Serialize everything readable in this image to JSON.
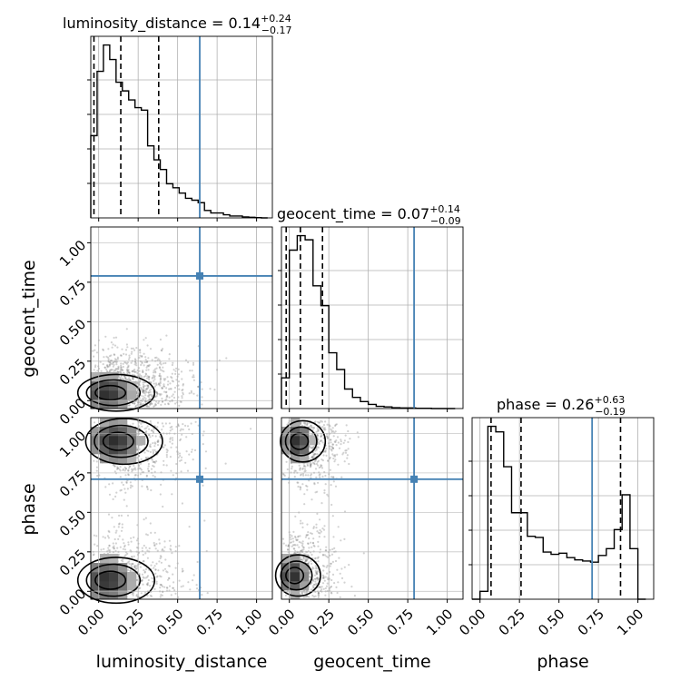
{
  "chart_data": {
    "type": "corner",
    "parameters": [
      "luminosity_distance",
      "geocent_time",
      "phase"
    ],
    "axis_labels": [
      "luminosity_distance",
      "geocent_time",
      "phase"
    ],
    "tick_labels": [
      "0.00",
      "0.25",
      "0.50",
      "0.75",
      "1.00"
    ],
    "tick_values": [
      0,
      0.25,
      0.5,
      0.75,
      1.0
    ],
    "axis_range": [
      -0.05,
      1.1
    ],
    "truths": [
      0.64,
      0.79,
      0.71
    ],
    "truth_color": "#4682b4",
    "grid": true,
    "marginals": [
      {
        "parameter": "luminosity_distance",
        "title": {
          "main": "luminosity_distance = 0.14",
          "sup": "+0.24",
          "sub": "−0.17"
        },
        "quantiles": [
          -0.03,
          0.14,
          0.38
        ],
        "bin_edges": [
          -0.05,
          -0.01,
          0.03,
          0.07,
          0.11,
          0.15,
          0.19,
          0.23,
          0.27,
          0.31,
          0.35,
          0.39,
          0.43,
          0.47,
          0.51,
          0.55,
          0.59,
          0.63,
          0.67,
          0.71,
          0.75,
          0.79,
          0.83,
          0.87,
          0.91,
          0.95,
          0.99,
          1.03,
          1.07
        ],
        "counts": [
          265,
          472,
          557,
          510,
          437,
          409,
          380,
          355,
          347,
          232,
          187,
          156,
          110,
          97,
          80,
          63,
          57,
          49,
          24,
          16,
          16,
          10,
          6,
          6,
          3,
          2,
          1,
          0
        ]
      },
      {
        "parameter": "geocent_time",
        "title": {
          "main": "geocent_time = 0.07",
          "sup": "+0.14",
          "sub": "−0.09"
        },
        "quantiles": [
          -0.02,
          0.07,
          0.21
        ],
        "bin_edges": [
          -0.05,
          0.0,
          0.05,
          0.1,
          0.15,
          0.2,
          0.25,
          0.3,
          0.35,
          0.4,
          0.45,
          0.5,
          0.55,
          0.6,
          0.65,
          0.7,
          0.75,
          0.8,
          0.85,
          0.9,
          0.95,
          1.0,
          1.05
        ],
        "counts": [
          110,
          568,
          620,
          605,
          440,
          369,
          200,
          140,
          70,
          40,
          25,
          15,
          8,
          6,
          3,
          2,
          2,
          1,
          1,
          0,
          0,
          0
        ]
      },
      {
        "parameter": "phase",
        "title": {
          "main": "phase = 0.26",
          "sup": "+0.63",
          "sub": "−0.19"
        },
        "quantiles": [
          0.07,
          0.26,
          0.89
        ],
        "bin_edges": [
          -0.05,
          0.0,
          0.05,
          0.1,
          0.15,
          0.2,
          0.25,
          0.3,
          0.35,
          0.4,
          0.45,
          0.5,
          0.55,
          0.6,
          0.65,
          0.7,
          0.75,
          0.8,
          0.85,
          0.9,
          0.95,
          1.0,
          1.05
        ],
        "counts": [
          0,
          35,
          770,
          745,
          590,
          385,
          385,
          280,
          275,
          210,
          200,
          205,
          185,
          175,
          170,
          165,
          195,
          225,
          310,
          465,
          225,
          0
        ]
      }
    ],
    "joint": [
      {
        "x": "luminosity_distance",
        "y": "geocent_time",
        "peak": [
          0.05,
          0.05
        ],
        "spread": [
          0.12,
          0.08
        ]
      },
      {
        "x": "luminosity_distance",
        "y": "phase",
        "peaks": [
          [
            0.05,
            0.07
          ],
          [
            0.1,
            0.95
          ]
        ],
        "spread": [
          0.12,
          0.1
        ]
      },
      {
        "x": "geocent_time",
        "y": "phase",
        "peaks": [
          [
            0.02,
            0.1
          ],
          [
            0.05,
            0.95
          ]
        ],
        "spread": [
          0.07,
          0.09
        ]
      }
    ]
  }
}
